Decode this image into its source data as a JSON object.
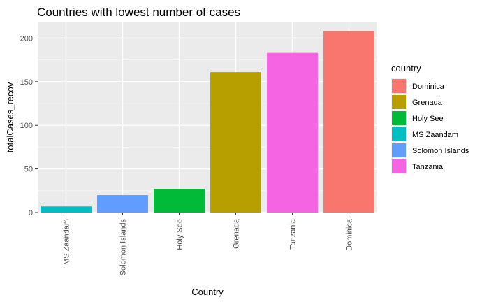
{
  "chart_data": {
    "type": "bar",
    "title": "Countries with lowest number of cases",
    "xlabel": "Country",
    "ylabel": "totalCases_recov",
    "ylim": [
      0,
      218
    ],
    "yticks": [
      0,
      50,
      100,
      150,
      200
    ],
    "grid": true,
    "categories": [
      "MS Zaandam",
      "Solomon Islands",
      "Holy See",
      "Grenada",
      "Tanzania",
      "Dominica"
    ],
    "values": [
      7,
      20,
      27,
      161,
      183,
      208
    ],
    "bar_colors": [
      "#00BFC4",
      "#619CFF",
      "#00BA38",
      "#B79F00",
      "#F564E3",
      "#F8766D"
    ],
    "legend": {
      "title": "country",
      "position": "right",
      "items": [
        {
          "label": "Dominica",
          "color": "#F8766D"
        },
        {
          "label": "Grenada",
          "color": "#B79F00"
        },
        {
          "label": "Holy See",
          "color": "#00BA38"
        },
        {
          "label": "MS Zaandam",
          "color": "#00BFC4"
        },
        {
          "label": "Solomon Islands",
          "color": "#619CFF"
        },
        {
          "label": "Tanzania",
          "color": "#F564E3"
        }
      ]
    }
  }
}
